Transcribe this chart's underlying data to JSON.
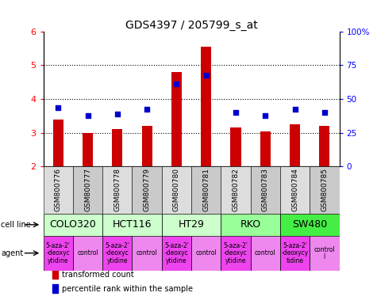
{
  "title": "GDS4397 / 205799_s_at",
  "samples": [
    "GSM800776",
    "GSM800777",
    "GSM800778",
    "GSM800779",
    "GSM800780",
    "GSM800781",
    "GSM800782",
    "GSM800783",
    "GSM800784",
    "GSM800785"
  ],
  "transformed_counts": [
    3.4,
    3.0,
    3.1,
    3.2,
    4.8,
    5.55,
    3.15,
    3.05,
    3.25,
    3.2
  ],
  "percentile_ranks": [
    3.75,
    3.5,
    3.55,
    3.7,
    4.45,
    4.7,
    3.6,
    3.5,
    3.7,
    3.6
  ],
  "bar_color": "#cc0000",
  "dot_color": "#0000cc",
  "ylim": [
    2.0,
    6.0
  ],
  "yticks": [
    2,
    3,
    4,
    5,
    6
  ],
  "right_yticks": [
    0,
    25,
    50,
    75,
    100
  ],
  "right_ytick_labels": [
    "0",
    "25",
    "50",
    "75",
    "100%"
  ],
  "cell_lines": [
    {
      "label": "COLO320",
      "start": 0,
      "end": 2,
      "color": "#ccffcc"
    },
    {
      "label": "HCT116",
      "start": 2,
      "end": 4,
      "color": "#ccffcc"
    },
    {
      "label": "HT29",
      "start": 4,
      "end": 6,
      "color": "#ccffcc"
    },
    {
      "label": "RKO",
      "start": 6,
      "end": 8,
      "color": "#99ff99"
    },
    {
      "label": "SW480",
      "start": 8,
      "end": 10,
      "color": "#44ee44"
    }
  ],
  "agents": [
    {
      "label": "5-aza-2'\n-deoxyc\nytidine",
      "start": 0,
      "end": 1,
      "color": "#ee44ee"
    },
    {
      "label": "control",
      "start": 1,
      "end": 2,
      "color": "#ee88ee"
    },
    {
      "label": "5-aza-2'\n-deoxyc\nytidine",
      "start": 2,
      "end": 3,
      "color": "#ee44ee"
    },
    {
      "label": "control",
      "start": 3,
      "end": 4,
      "color": "#ee88ee"
    },
    {
      "label": "5-aza-2'\n-deoxyc\nytidine",
      "start": 4,
      "end": 5,
      "color": "#ee44ee"
    },
    {
      "label": "control",
      "start": 5,
      "end": 6,
      "color": "#ee88ee"
    },
    {
      "label": "5-aza-2'\n-deoxyc\nytidine",
      "start": 6,
      "end": 7,
      "color": "#ee44ee"
    },
    {
      "label": "control",
      "start": 7,
      "end": 8,
      "color": "#ee88ee"
    },
    {
      "label": "5-aza-2'\n-deoxycy\ntidine",
      "start": 8,
      "end": 9,
      "color": "#ee44ee"
    },
    {
      "label": "control\nl",
      "start": 9,
      "end": 10,
      "color": "#ee88ee"
    }
  ],
  "legend_items": [
    {
      "label": "transformed count",
      "color": "#cc0000"
    },
    {
      "label": "percentile rank within the sample",
      "color": "#0000cc"
    }
  ],
  "bar_width": 0.35,
  "sample_label_fontsize": 6.5,
  "cell_line_fontsize": 9,
  "agent_fontsize": 5.5,
  "title_fontsize": 10,
  "left_label_cell": "cell line",
  "left_label_agent": "agent"
}
